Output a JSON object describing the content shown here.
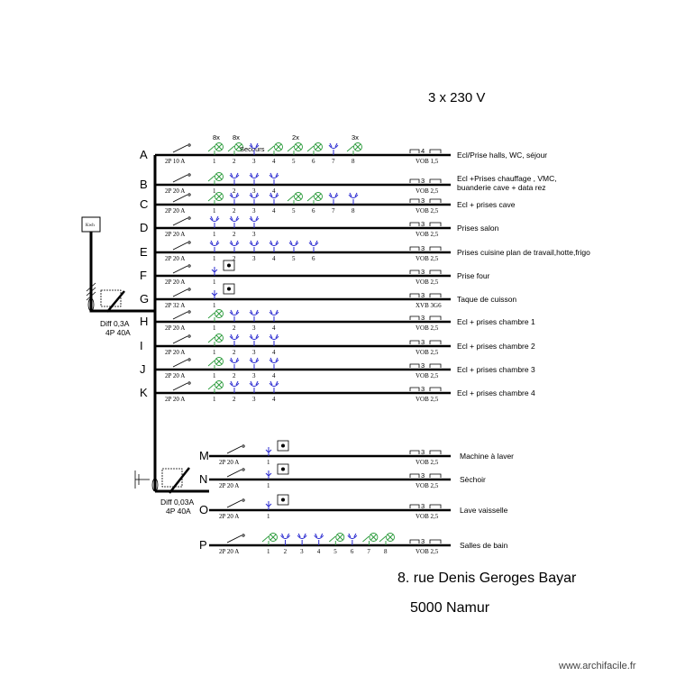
{
  "title": "3 x 230 V",
  "address": {
    "line1": "8. rue Denis Geroges Bayar",
    "line2": "5000 Namur"
  },
  "watermark": "www.archifacile.fr",
  "meter_label": "Kwh",
  "upper_differential": {
    "line1": "Diff 0,3A",
    "line2": "4P  40A"
  },
  "lower_differential": {
    "line1": "Diff 0,03A",
    "line2": "4P  40A"
  },
  "circuits": [
    {
      "id": "A",
      "breaker": "2P  10 A",
      "cable_count": "4",
      "cable": "VOB 1,5",
      "description": [
        "Ecl/Prise  halls, WC, séjour"
      ],
      "points": [
        {
          "n": "1",
          "type": "light",
          "mult": "8x"
        },
        {
          "n": "2",
          "type": "light",
          "mult": "8x",
          "note": "Secours"
        },
        {
          "n": "3",
          "type": "socket"
        },
        {
          "n": "4",
          "type": "light"
        },
        {
          "n": "5",
          "type": "light",
          "mult": "2x"
        },
        {
          "n": "6",
          "type": "light"
        },
        {
          "n": "7",
          "type": "socket"
        },
        {
          "n": "8",
          "type": "light",
          "mult": "3x"
        }
      ]
    },
    {
      "id": "B",
      "breaker": "2P  20 A",
      "cable_count": "3",
      "cable": "VOB 2,5",
      "description": [
        "Ecl +Prises  chauffage , VMC,",
        "buanderie cave + data rez"
      ],
      "points": [
        {
          "n": "1",
          "type": "light"
        },
        {
          "n": "2",
          "type": "socket"
        },
        {
          "n": "3",
          "type": "socket"
        },
        {
          "n": "4",
          "type": "socket"
        }
      ]
    },
    {
      "id": "C",
      "breaker": "2P  20 A",
      "cable_count": "3",
      "cable": "VOB 2,5",
      "description": [
        "Ecl + prises cave"
      ],
      "points": [
        {
          "n": "1",
          "type": "light"
        },
        {
          "n": "2",
          "type": "socket"
        },
        {
          "n": "3",
          "type": "socket"
        },
        {
          "n": "4",
          "type": "socket"
        },
        {
          "n": "5",
          "type": "light"
        },
        {
          "n": "6",
          "type": "light"
        },
        {
          "n": "7",
          "type": "socket"
        },
        {
          "n": "8",
          "type": "socket"
        }
      ]
    },
    {
      "id": "D",
      "breaker": "2P  20 A",
      "cable_count": "3",
      "cable": "VOB 2,5",
      "description": [
        "Prises  salon"
      ],
      "points": [
        {
          "n": "1",
          "type": "socket"
        },
        {
          "n": "2",
          "type": "socket"
        },
        {
          "n": "3",
          "type": "socket"
        }
      ]
    },
    {
      "id": "E",
      "breaker": "2P  20 A",
      "cable_count": "3",
      "cable": "VOB 2,5",
      "description": [
        "Prises  cuisine plan de travail,hotte,frigo"
      ],
      "points": [
        {
          "n": "1",
          "type": "socket"
        },
        {
          "n": "2",
          "type": "socket"
        },
        {
          "n": "3",
          "type": "socket"
        },
        {
          "n": "4",
          "type": "socket"
        },
        {
          "n": "5",
          "type": "socket"
        },
        {
          "n": "6",
          "type": "socket"
        }
      ]
    },
    {
      "id": "F",
      "breaker": "2P  20 A",
      "cable_count": "3",
      "cable": "VOB 2,5",
      "description": [
        "Prise  four"
      ],
      "points": [
        {
          "n": "1",
          "type": "appliance"
        }
      ]
    },
    {
      "id": "G",
      "breaker": "2P  32 A",
      "cable_count": "3",
      "cable": "XVB 3G6",
      "description": [
        "Taque de cuisson"
      ],
      "points": [
        {
          "n": "1",
          "type": "appliance"
        }
      ]
    },
    {
      "id": "H",
      "breaker": "2P  20 A",
      "cable_count": "3",
      "cable": "VOB 2,5",
      "description": [
        "Ecl + prises chambre 1"
      ],
      "points": [
        {
          "n": "1",
          "type": "light"
        },
        {
          "n": "2",
          "type": "socket"
        },
        {
          "n": "3",
          "type": "socket"
        },
        {
          "n": "4",
          "type": "socket"
        }
      ]
    },
    {
      "id": "I",
      "breaker": "2P  20 A",
      "cable_count": "3",
      "cable": "VOB 2,5",
      "description": [
        "Ecl + prises chambre 2"
      ],
      "points": [
        {
          "n": "1",
          "type": "light"
        },
        {
          "n": "2",
          "type": "socket"
        },
        {
          "n": "3",
          "type": "socket"
        },
        {
          "n": "4",
          "type": "socket"
        }
      ]
    },
    {
      "id": "J",
      "breaker": "2P  20 A",
      "cable_count": "3",
      "cable": "VOB 2,5",
      "description": [
        "Ecl + prises chambre 3"
      ],
      "points": [
        {
          "n": "1",
          "type": "light"
        },
        {
          "n": "2",
          "type": "socket"
        },
        {
          "n": "3",
          "type": "socket"
        },
        {
          "n": "4",
          "type": "socket"
        }
      ]
    },
    {
      "id": "K",
      "breaker": "2P  20 A",
      "cable_count": "3",
      "cable": "VOB 2,5",
      "description": [
        "Ecl + prises chambre 4"
      ],
      "points": [
        {
          "n": "1",
          "type": "light"
        },
        {
          "n": "2",
          "type": "socket"
        },
        {
          "n": "3",
          "type": "socket"
        },
        {
          "n": "4",
          "type": "socket"
        }
      ]
    },
    {
      "id": "M",
      "breaker": "2P  20 A",
      "cable_count": "3",
      "cable": "VOB 2,5",
      "description": [
        "Machine à laver"
      ],
      "points": [
        {
          "n": "1",
          "type": "appliance"
        }
      ]
    },
    {
      "id": "N",
      "breaker": "2P  20 A",
      "cable_count": "3",
      "cable": "VOB 2,5",
      "description": [
        "Sèchoir"
      ],
      "points": [
        {
          "n": "1",
          "type": "appliance"
        }
      ]
    },
    {
      "id": "O",
      "breaker": "2P  20 A",
      "cable_count": "3",
      "cable": "VOB 2,5",
      "description": [
        "Lave vaisselle"
      ],
      "points": [
        {
          "n": "1",
          "type": "appliance"
        }
      ]
    },
    {
      "id": "P",
      "breaker": "2P  20 A",
      "cable_count": "3",
      "cable": "VOB 2,5",
      "description": [
        "Salles de bain"
      ],
      "points": [
        {
          "n": "1",
          "type": "light"
        },
        {
          "n": "2",
          "type": "socket"
        },
        {
          "n": "3",
          "type": "socket"
        },
        {
          "n": "4",
          "type": "socket"
        },
        {
          "n": "5",
          "type": "light"
        },
        {
          "n": "6",
          "type": "socket"
        },
        {
          "n": "7",
          "type": "light"
        },
        {
          "n": "8",
          "type": "light"
        }
      ]
    }
  ]
}
